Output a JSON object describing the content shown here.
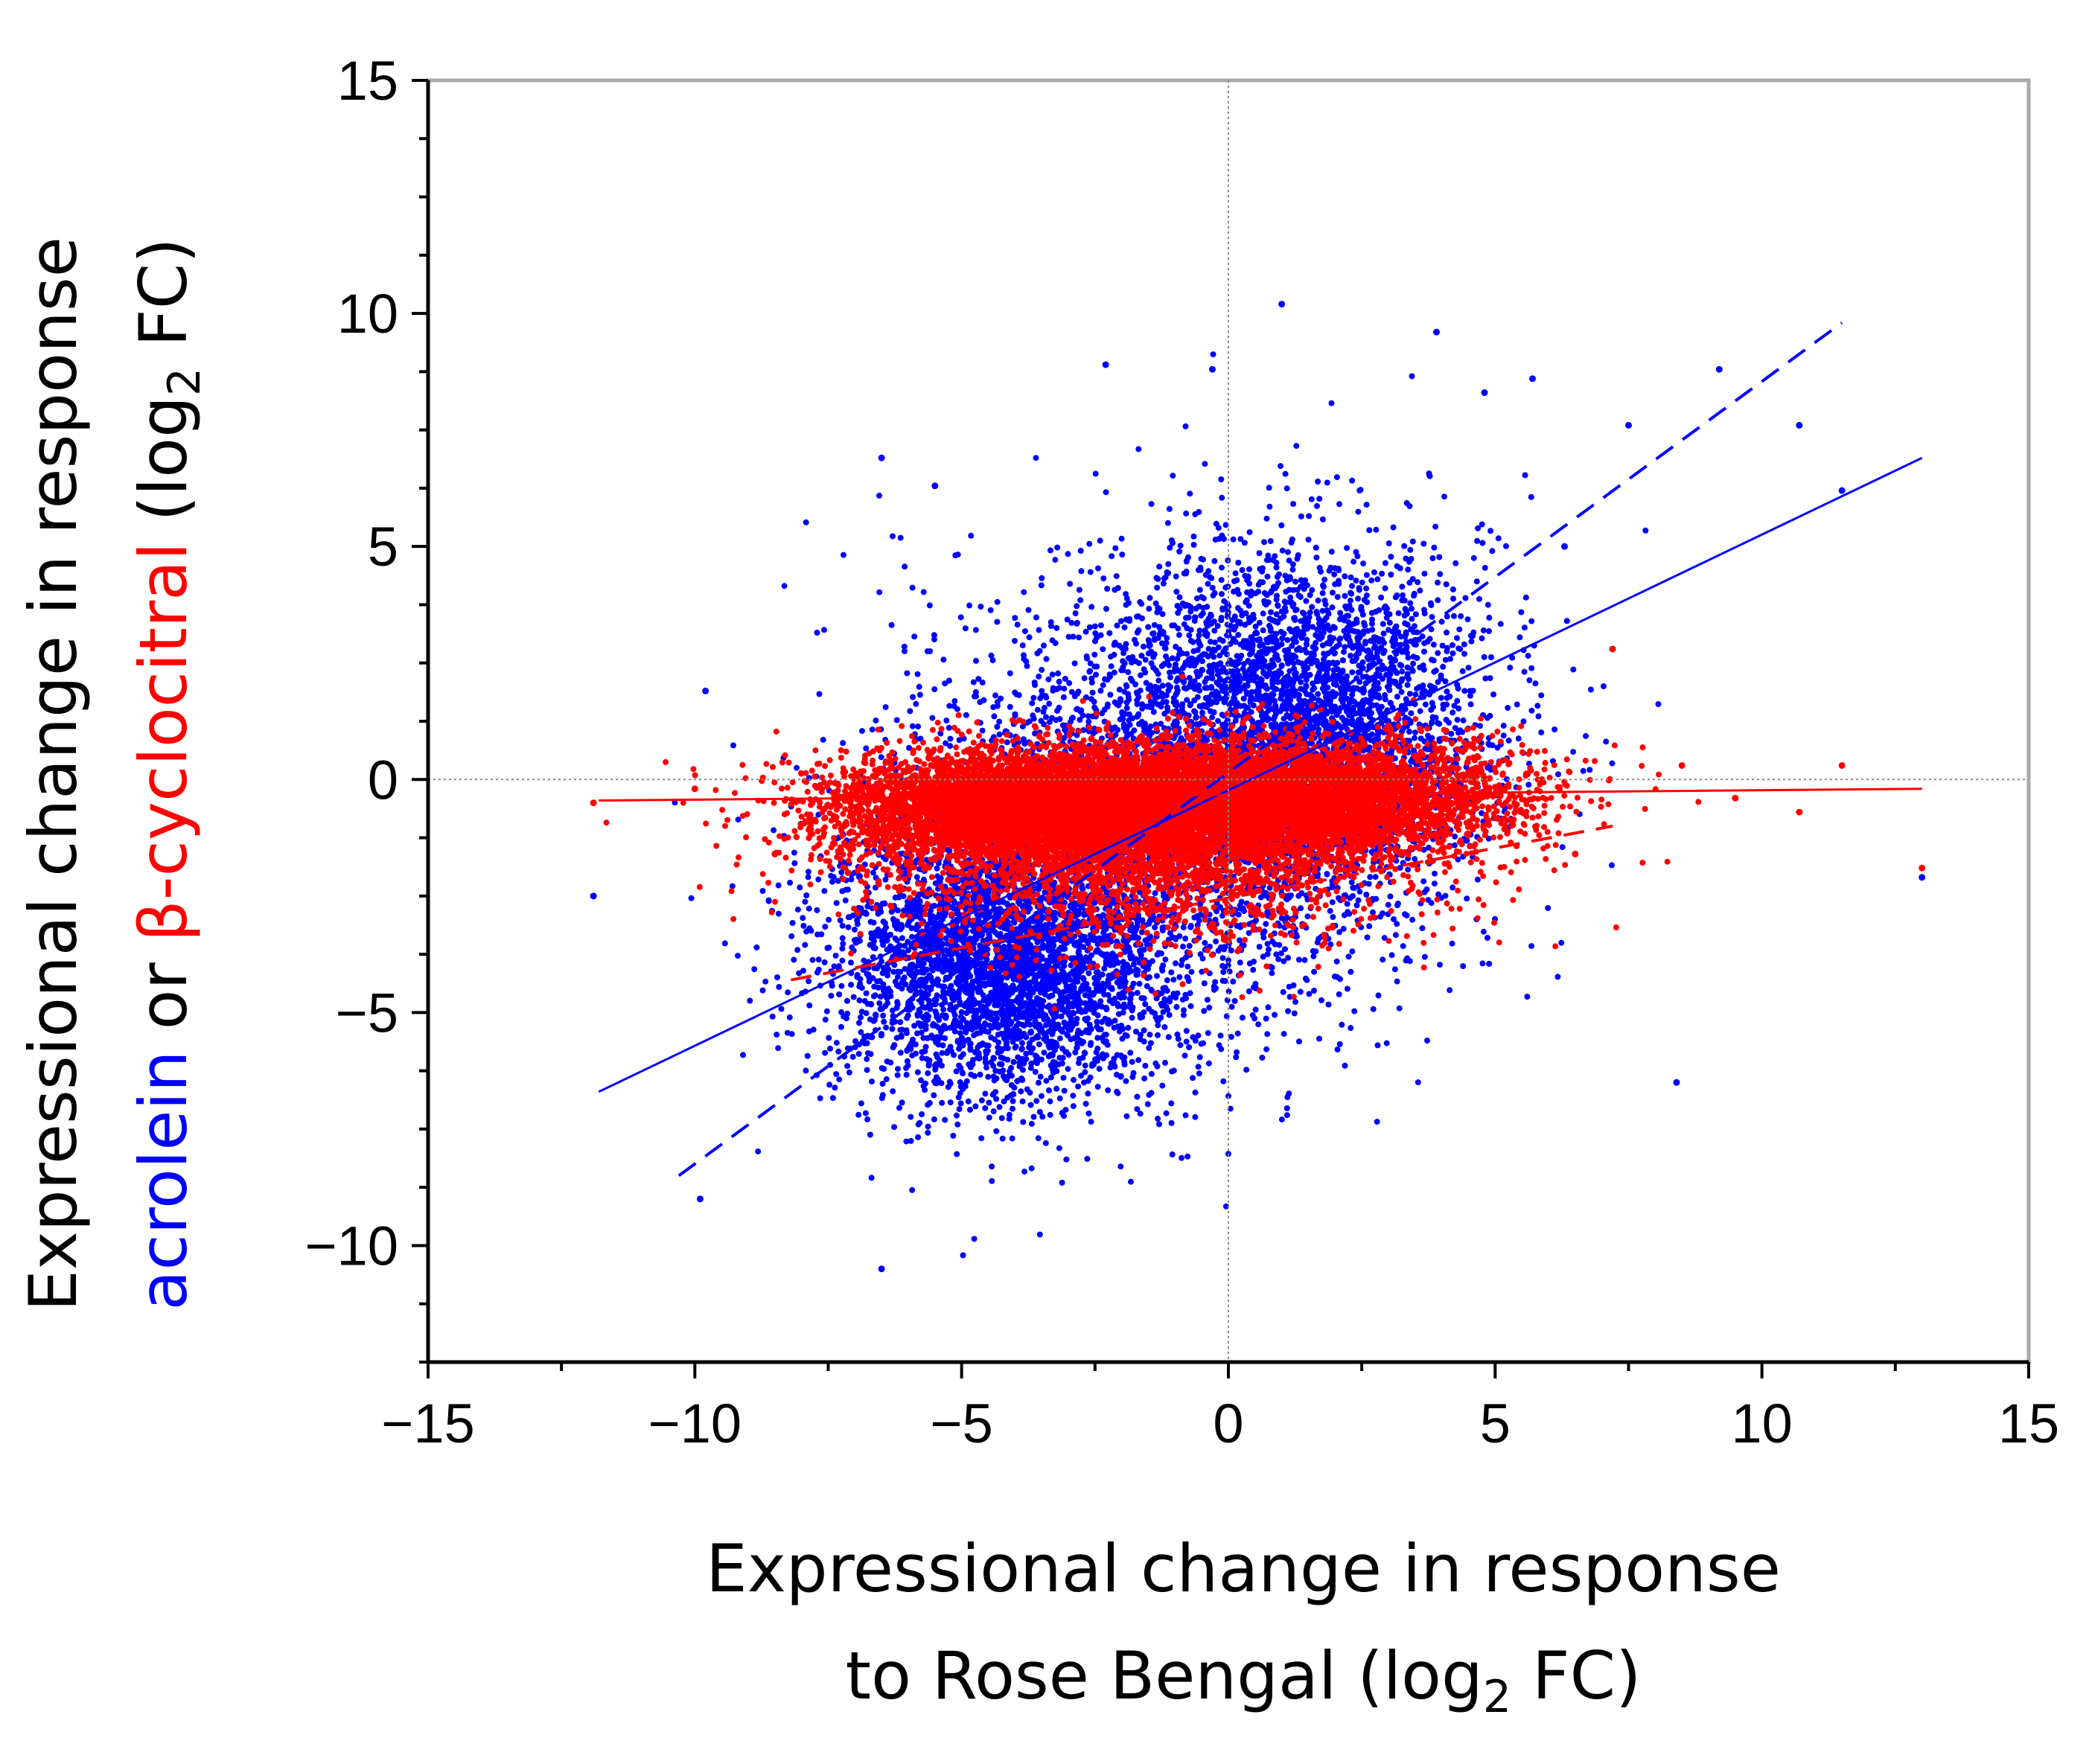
{
  "chart_data": {
    "type": "scatter",
    "title": "",
    "xlabel": {
      "line1": "Expressional change in response",
      "line2_pre": "to Rose Bengal (log",
      "line2_sub": "2",
      "line2_post": " FC)"
    },
    "ylabel": {
      "line1": "Expressional change in response",
      "line2_acrolein": "acrolein",
      "line2_or": " or ",
      "line2_cyclocitral": "β-cyclocitral",
      "line2_pre": " (log",
      "line2_sub": "2",
      "line2_post": " FC)"
    },
    "xlim": [
      -15,
      15
    ],
    "ylim": [
      -12.5,
      15
    ],
    "x_ticks": [
      -15,
      -10,
      -5,
      0,
      5,
      10,
      15
    ],
    "x_tick_labels": [
      "−15",
      "−10",
      "−5",
      "0",
      "5",
      "10",
      "15"
    ],
    "y_ticks": [
      -10,
      -5,
      0,
      5,
      10,
      15
    ],
    "y_tick_labels": [
      "−10",
      "−5",
      "0",
      "5",
      "10",
      "15"
    ],
    "reference_lines": {
      "x": 0,
      "y": 0
    },
    "series": [
      {
        "name": "acrolein",
        "color": "#0000ff",
        "n_points": 9000,
        "clusters": [
          {
            "cx": -4.2,
            "cy": -3.8,
            "sx": 1.6,
            "sy": 1.5,
            "weight": 0.38
          },
          {
            "cx": 1.3,
            "cy": 1.2,
            "sx": 1.8,
            "sy": 1.9,
            "weight": 0.38
          },
          {
            "cx": -1.5,
            "cy": -0.8,
            "sx": 2.5,
            "sy": 2.6,
            "weight": 0.24
          }
        ],
        "outliers": [
          [
            1.0,
            10.2
          ],
          [
            -2.3,
            8.9
          ],
          [
            -0.3,
            8.8
          ],
          [
            3.9,
            9.6
          ],
          [
            9.2,
            8.8
          ],
          [
            10.7,
            7.6
          ],
          [
            -5.5,
            6.3
          ],
          [
            -6.5,
            6.9
          ],
          [
            -9.8,
            1.9
          ],
          [
            -11.9,
            -2.5
          ],
          [
            -9.9,
            -9.0
          ],
          [
            -6.5,
            -10.5
          ],
          [
            8.4,
            -6.5
          ],
          [
            13.0,
            -2.1
          ],
          [
            11.5,
            6.2
          ],
          [
            5.7,
            8.6
          ],
          [
            4.8,
            8.3
          ],
          [
            6.3,
            5.0
          ],
          [
            7.5,
            7.6
          ]
        ],
        "fit_solid": {
          "x": [
            -11.8,
            13.0
          ],
          "y": [
            -6.7,
            6.9
          ]
        },
        "fit_dashed": {
          "x": [
            -10.3,
            11.5
          ],
          "y": [
            -8.5,
            9.8
          ]
        }
      },
      {
        "name": "β-cyclocitral",
        "color": "#ff0000",
        "n_points": 14000,
        "clusters": [
          {
            "cx": -3.2,
            "cy": -0.6,
            "sx": 2.0,
            "sy": 0.6,
            "weight": 0.5
          },
          {
            "cx": 1.2,
            "cy": -0.4,
            "sx": 2.0,
            "sy": 0.6,
            "weight": 0.35
          },
          {
            "cx": -1.5,
            "cy": -1.6,
            "sx": 2.6,
            "sy": 1.0,
            "weight": 0.15
          }
        ],
        "outliers": [
          [
            -10.0,
            -0.2
          ],
          [
            -11.9,
            -0.5
          ],
          [
            8.5,
            0.3
          ],
          [
            11.5,
            0.3
          ],
          [
            13.0,
            -1.9
          ],
          [
            7.2,
            2.8
          ],
          [
            10.7,
            -0.7
          ],
          [
            9.5,
            -0.4
          ],
          [
            6.5,
            -1.6
          ],
          [
            -8.5,
            -1.6
          ]
        ],
        "fit_solid": {
          "x": [
            -11.8,
            13.0
          ],
          "y": [
            -0.45,
            -0.2
          ]
        },
        "fit_dashed": {
          "x": [
            -8.2,
            7.2
          ],
          "y": [
            -4.3,
            -1.0
          ]
        }
      }
    ]
  }
}
